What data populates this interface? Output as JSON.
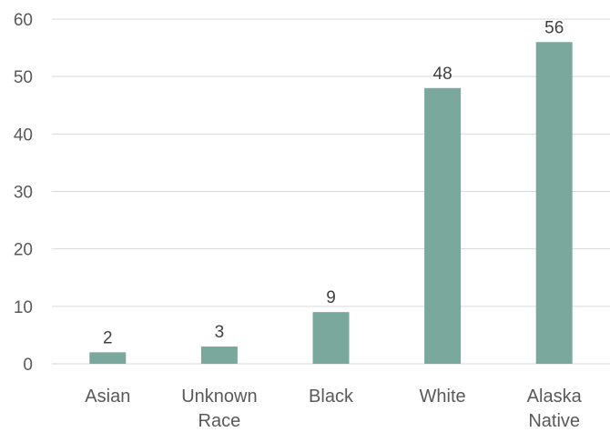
{
  "chart_data": {
    "type": "bar",
    "categories": [
      [
        "Asian"
      ],
      [
        "Unknown",
        "Race"
      ],
      [
        "Black"
      ],
      [
        "White"
      ],
      [
        "Alaska",
        "Native"
      ]
    ],
    "values": [
      2,
      3,
      9,
      48,
      56
    ],
    "data_labels": [
      "2",
      "3",
      "9",
      "48",
      "56"
    ],
    "yticks": [
      "0",
      "10",
      "20",
      "30",
      "40",
      "50",
      "60"
    ],
    "ylim": [
      0,
      60
    ],
    "grid": true,
    "legend": "none",
    "colors": {
      "bar": "#7ba89d",
      "grid": "#d9d9d9",
      "text": "#595959"
    }
  }
}
